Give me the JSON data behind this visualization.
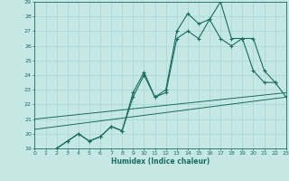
{
  "xlabel": "Humidex (Indice chaleur)",
  "bg_color": "#c5e8e5",
  "grid_color": "#a8d5d0",
  "line_color": "#1a6b60",
  "xlim": [
    0,
    23
  ],
  "ylim": [
    19,
    29
  ],
  "xticks": [
    0,
    1,
    2,
    3,
    4,
    5,
    6,
    7,
    8,
    9,
    10,
    11,
    12,
    13,
    14,
    15,
    16,
    17,
    18,
    19,
    20,
    21,
    22,
    23
  ],
  "yticks": [
    19,
    20,
    21,
    22,
    23,
    24,
    25,
    26,
    27,
    28,
    29
  ],
  "series": [
    {
      "x": [
        2,
        3,
        4,
        5,
        6,
        7,
        8,
        9,
        10,
        11,
        12,
        13,
        14,
        15,
        16,
        17,
        18,
        19,
        20,
        21,
        22
      ],
      "y": [
        19.0,
        19.5,
        20.0,
        19.5,
        19.8,
        20.5,
        20.2,
        22.8,
        24.2,
        22.5,
        23.0,
        27.0,
        28.2,
        27.5,
        27.8,
        29.0,
        26.5,
        26.5,
        24.3,
        23.5,
        23.5
      ]
    },
    {
      "x": [
        2,
        3,
        4,
        5,
        6,
        7,
        8,
        9,
        10,
        11,
        12,
        13,
        14,
        15,
        16,
        17,
        18,
        19,
        20,
        21,
        22,
        23
      ],
      "y": [
        19.0,
        19.5,
        20.0,
        19.5,
        19.8,
        20.5,
        20.2,
        22.5,
        24.0,
        22.5,
        22.8,
        26.5,
        27.0,
        26.5,
        27.8,
        26.5,
        26.0,
        26.5,
        26.5,
        24.3,
        23.5,
        22.5
      ]
    },
    {
      "x": [
        0,
        23
      ],
      "y": [
        20.3,
        22.5
      ]
    },
    {
      "x": [
        0,
        23
      ],
      "y": [
        21.0,
        22.8
      ]
    }
  ]
}
